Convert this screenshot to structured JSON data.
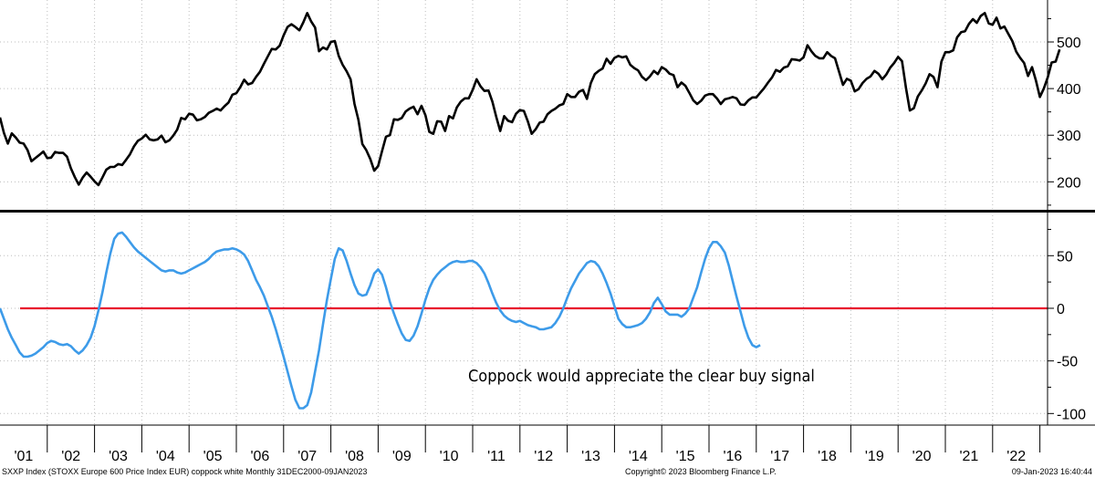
{
  "footer": {
    "left": "SXXP Index (STOXX Europe 600 Price Index EUR) coppock white  Monthly 31DEC2000-09JAN2023",
    "center": "Copyright© 2023 Bloomberg Finance L.P.",
    "right": "09-Jan-2023 16:40:44"
  },
  "colors": {
    "price_line": "#000000",
    "coppock_line": "#3d9be9",
    "zero_line": "#e8112d",
    "grid": "#bdbdbd",
    "axis": "#000000"
  },
  "chart_data": [
    {
      "type": "line",
      "panel": "top",
      "ylim": [
        140,
        590
      ],
      "y_ticks": [
        200,
        300,
        400,
        500
      ],
      "x_start": 2001.0,
      "x_step": 0.0833333,
      "series": [
        {
          "values": [
            338,
            305,
            282,
            304,
            295,
            284,
            282,
            268,
            244,
            251,
            258,
            265,
            251,
            252,
            264,
            262,
            262,
            254,
            229,
            210,
            194,
            209,
            220,
            211,
            201,
            193,
            209,
            226,
            232,
            232,
            238,
            236,
            247,
            259,
            276,
            288,
            293,
            301,
            291,
            289,
            291,
            299,
            285,
            289,
            299,
            312,
            337,
            334,
            346,
            344,
            332,
            334,
            339,
            348,
            352,
            357,
            353,
            362,
            370,
            387,
            390,
            403,
            419,
            409,
            412,
            425,
            436,
            453,
            469,
            485,
            484,
            492,
            514,
            532,
            538,
            532,
            525,
            542,
            562,
            544,
            531,
            480,
            488,
            484,
            500,
            502,
            470,
            451,
            437,
            420,
            367,
            333,
            281,
            268,
            249,
            224,
            234,
            266,
            297,
            300,
            334,
            333,
            337,
            351,
            357,
            361,
            345,
            363,
            343,
            307,
            303,
            330,
            329,
            309,
            341,
            336,
            360,
            372,
            379,
            379,
            397,
            420,
            405,
            395,
            396,
            372,
            339,
            309,
            341,
            331,
            328,
            346,
            354,
            352,
            330,
            303,
            313,
            327,
            329,
            345,
            352,
            357,
            364,
            367,
            388,
            382,
            382,
            393,
            397,
            378,
            412,
            431,
            438,
            443,
            464,
            453,
            466,
            470,
            467,
            469,
            451,
            444,
            439,
            425,
            418,
            426,
            438,
            431,
            446,
            441,
            432,
            429,
            403,
            413,
            406,
            391,
            375,
            367,
            374,
            385,
            388,
            388,
            379,
            367,
            377,
            379,
            382,
            379,
            366,
            365,
            375,
            381,
            381,
            391,
            401,
            413,
            424,
            440,
            436,
            445,
            448,
            463,
            462,
            460,
            467,
            493,
            480,
            470,
            465,
            465,
            478,
            470,
            465,
            437,
            408,
            421,
            417,
            394,
            399,
            412,
            421,
            426,
            438,
            432,
            420,
            430,
            445,
            455,
            468,
            459,
            402,
            353,
            358,
            383,
            396,
            411,
            431,
            425,
            403,
            458,
            478,
            478,
            482,
            510,
            521,
            523,
            539,
            549,
            541,
            556,
            562,
            540,
            537,
            552,
            529,
            533,
            517,
            502,
            479,
            466,
            455,
            427,
            446,
            417,
            382,
            400,
            424,
            456,
            458,
            484
          ]
        }
      ]
    },
    {
      "type": "line",
      "panel": "bottom",
      "ylim": [
        -111,
        91
      ],
      "y_ticks": [
        -100,
        -50,
        0,
        50
      ],
      "x_start": 2001.0,
      "x_step": 0.0833333,
      "x_tick_labels": [
        "'01",
        "'02",
        "'03",
        "'04",
        "'05",
        "'06",
        "'07",
        "'08",
        "'09",
        "'10",
        "'11",
        "'12",
        "'13",
        "'14",
        "'15",
        "'16",
        "'17",
        "'18",
        "'19",
        "'20",
        "'21",
        "'22"
      ],
      "reference_line": 0,
      "annotation": "Coppock would appreciate the clear buy signal",
      "series": [
        {
          "values": [
            0,
            -10,
            -20,
            -28,
            -35,
            -42,
            -46,
            -46,
            -45,
            -43,
            -40,
            -37,
            -33,
            -31,
            -32,
            -34,
            -35,
            -34,
            -36,
            -40,
            -43,
            -40,
            -35,
            -28,
            -17,
            -2,
            15,
            34,
            52,
            66,
            71,
            72,
            68,
            63,
            58,
            54,
            51,
            48,
            45,
            42,
            39,
            36,
            35,
            36,
            36,
            34,
            33,
            34,
            36,
            38,
            40,
            42,
            44,
            47,
            51,
            54,
            55,
            56,
            56,
            57,
            56,
            54,
            51,
            45,
            36,
            27,
            20,
            12,
            2,
            -8,
            -20,
            -33,
            -46,
            -60,
            -74,
            -87,
            -95,
            -95,
            -92,
            -80,
            -60,
            -40,
            -15,
            8,
            28,
            47,
            57,
            55,
            45,
            33,
            22,
            14,
            12,
            13,
            22,
            33,
            37,
            32,
            20,
            6,
            -5,
            -15,
            -24,
            -30,
            -31,
            -26,
            -17,
            -5,
            8,
            19,
            27,
            32,
            36,
            39,
            42,
            44,
            45,
            44,
            44,
            45,
            45,
            43,
            39,
            33,
            24,
            14,
            5,
            -2,
            -7,
            -10,
            -12,
            -13,
            -12,
            -14,
            -16,
            -17,
            -18,
            -20,
            -20,
            -19,
            -18,
            -14,
            -8,
            0,
            10,
            19,
            26,
            33,
            38,
            43,
            45,
            44,
            40,
            33,
            24,
            14,
            2,
            -10,
            -15,
            -18,
            -18,
            -17,
            -16,
            -14,
            -10,
            -4,
            5,
            10,
            4,
            -3,
            -6,
            -6,
            -6,
            -8,
            -5,
            0,
            10,
            20,
            34,
            47,
            57,
            63,
            63,
            59,
            53,
            41,
            26,
            11,
            -3,
            -17,
            -28,
            -35,
            -37,
            -35
          ]
        }
      ]
    }
  ]
}
